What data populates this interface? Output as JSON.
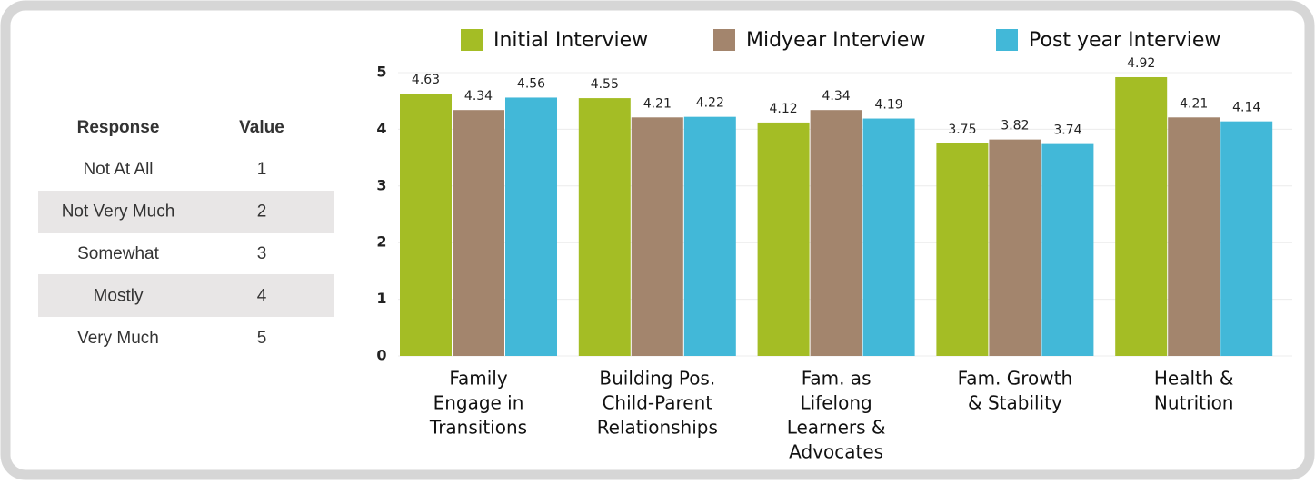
{
  "table": {
    "header": [
      "Response",
      "Value"
    ],
    "rows": [
      [
        "Not At All",
        "1"
      ],
      [
        "Not Very Much",
        "2"
      ],
      [
        "Somewhat",
        "3"
      ],
      [
        "Mostly",
        "4"
      ],
      [
        "Very Much",
        "5"
      ]
    ]
  },
  "chart_data": {
    "type": "bar",
    "categories": [
      [
        "Family",
        "Engage in",
        "Transitions"
      ],
      [
        "Building Pos.",
        "Child-Parent",
        "Relationships"
      ],
      [
        "Fam. as",
        "Lifelong",
        "Learners &",
        "Advocates"
      ],
      [
        "Fam. Growth",
        "& Stability"
      ],
      [
        "Health &",
        "Nutrition"
      ]
    ],
    "series": [
      {
        "name": "Initial Interview",
        "color": "#a4bd25",
        "values": [
          4.63,
          4.55,
          4.12,
          3.75,
          4.92
        ]
      },
      {
        "name": "Midyear Interview",
        "color": "#a3856d",
        "values": [
          4.34,
          4.21,
          4.34,
          3.82,
          4.21
        ]
      },
      {
        "name": "Post year Interview",
        "color": "#42b8d8",
        "values": [
          4.56,
          4.22,
          4.19,
          3.74,
          4.14
        ]
      }
    ],
    "ylim": [
      0,
      5
    ],
    "yticks": [
      0,
      1,
      2,
      3,
      4,
      5
    ],
    "grid": true,
    "legend": "top"
  }
}
